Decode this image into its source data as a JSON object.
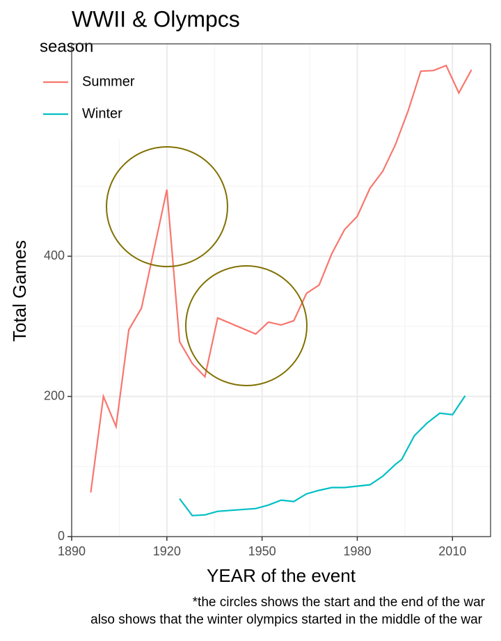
{
  "chart_data": {
    "type": "line",
    "title": "WWII & Olympcs",
    "x_label": "YEAR of the event",
    "y_label": "Total Games",
    "legend_title": "season",
    "caption": [
      "*the circles shows the start and the end of the war",
      "also shows that the winter olympics started in the middle of the war"
    ],
    "xlim": [
      1890,
      2022
    ],
    "ylim": [
      0,
      703
    ],
    "xticks": [
      1890,
      1920,
      1950,
      1980,
      2010
    ],
    "yticks": [
      0,
      200,
      400
    ],
    "x_minor_ticks": [
      1905,
      1935,
      1965,
      1995
    ],
    "y_minor_ticks": [
      100,
      300,
      500
    ],
    "grid": true,
    "legend": "top-left",
    "series": [
      {
        "name": "Summer",
        "color": "#F8766D",
        "x": [
          1896,
          1900,
          1904,
          1908,
          1912,
          1920,
          1924,
          1928,
          1932,
          1936,
          1948,
          1952,
          1956,
          1960,
          1964,
          1968,
          1972,
          1976,
          1980,
          1984,
          1988,
          1992,
          1996,
          2000,
          2004,
          2008,
          2012,
          2016
        ],
        "values": [
          63,
          200,
          157,
          295,
          326,
          495,
          278,
          247,
          228,
          312,
          289,
          306,
          302,
          308,
          347,
          359,
          404,
          438,
          457,
          497,
          521,
          559,
          607,
          664,
          665,
          672,
          633,
          666
        ]
      },
      {
        "name": "Winter",
        "color": "#00BFC4",
        "x": [
          1924,
          1928,
          1932,
          1936,
          1948,
          1952,
          1956,
          1960,
          1964,
          1968,
          1972,
          1976,
          1980,
          1984,
          1988,
          1992,
          1994,
          1998,
          2002,
          2006,
          2010,
          2014
        ],
        "values": [
          54,
          30,
          31,
          36,
          40,
          45,
          52,
          50,
          61,
          66,
          70,
          70,
          72,
          74,
          86,
          103,
          110,
          144,
          162,
          176,
          174,
          201
        ]
      }
    ]
  }
}
